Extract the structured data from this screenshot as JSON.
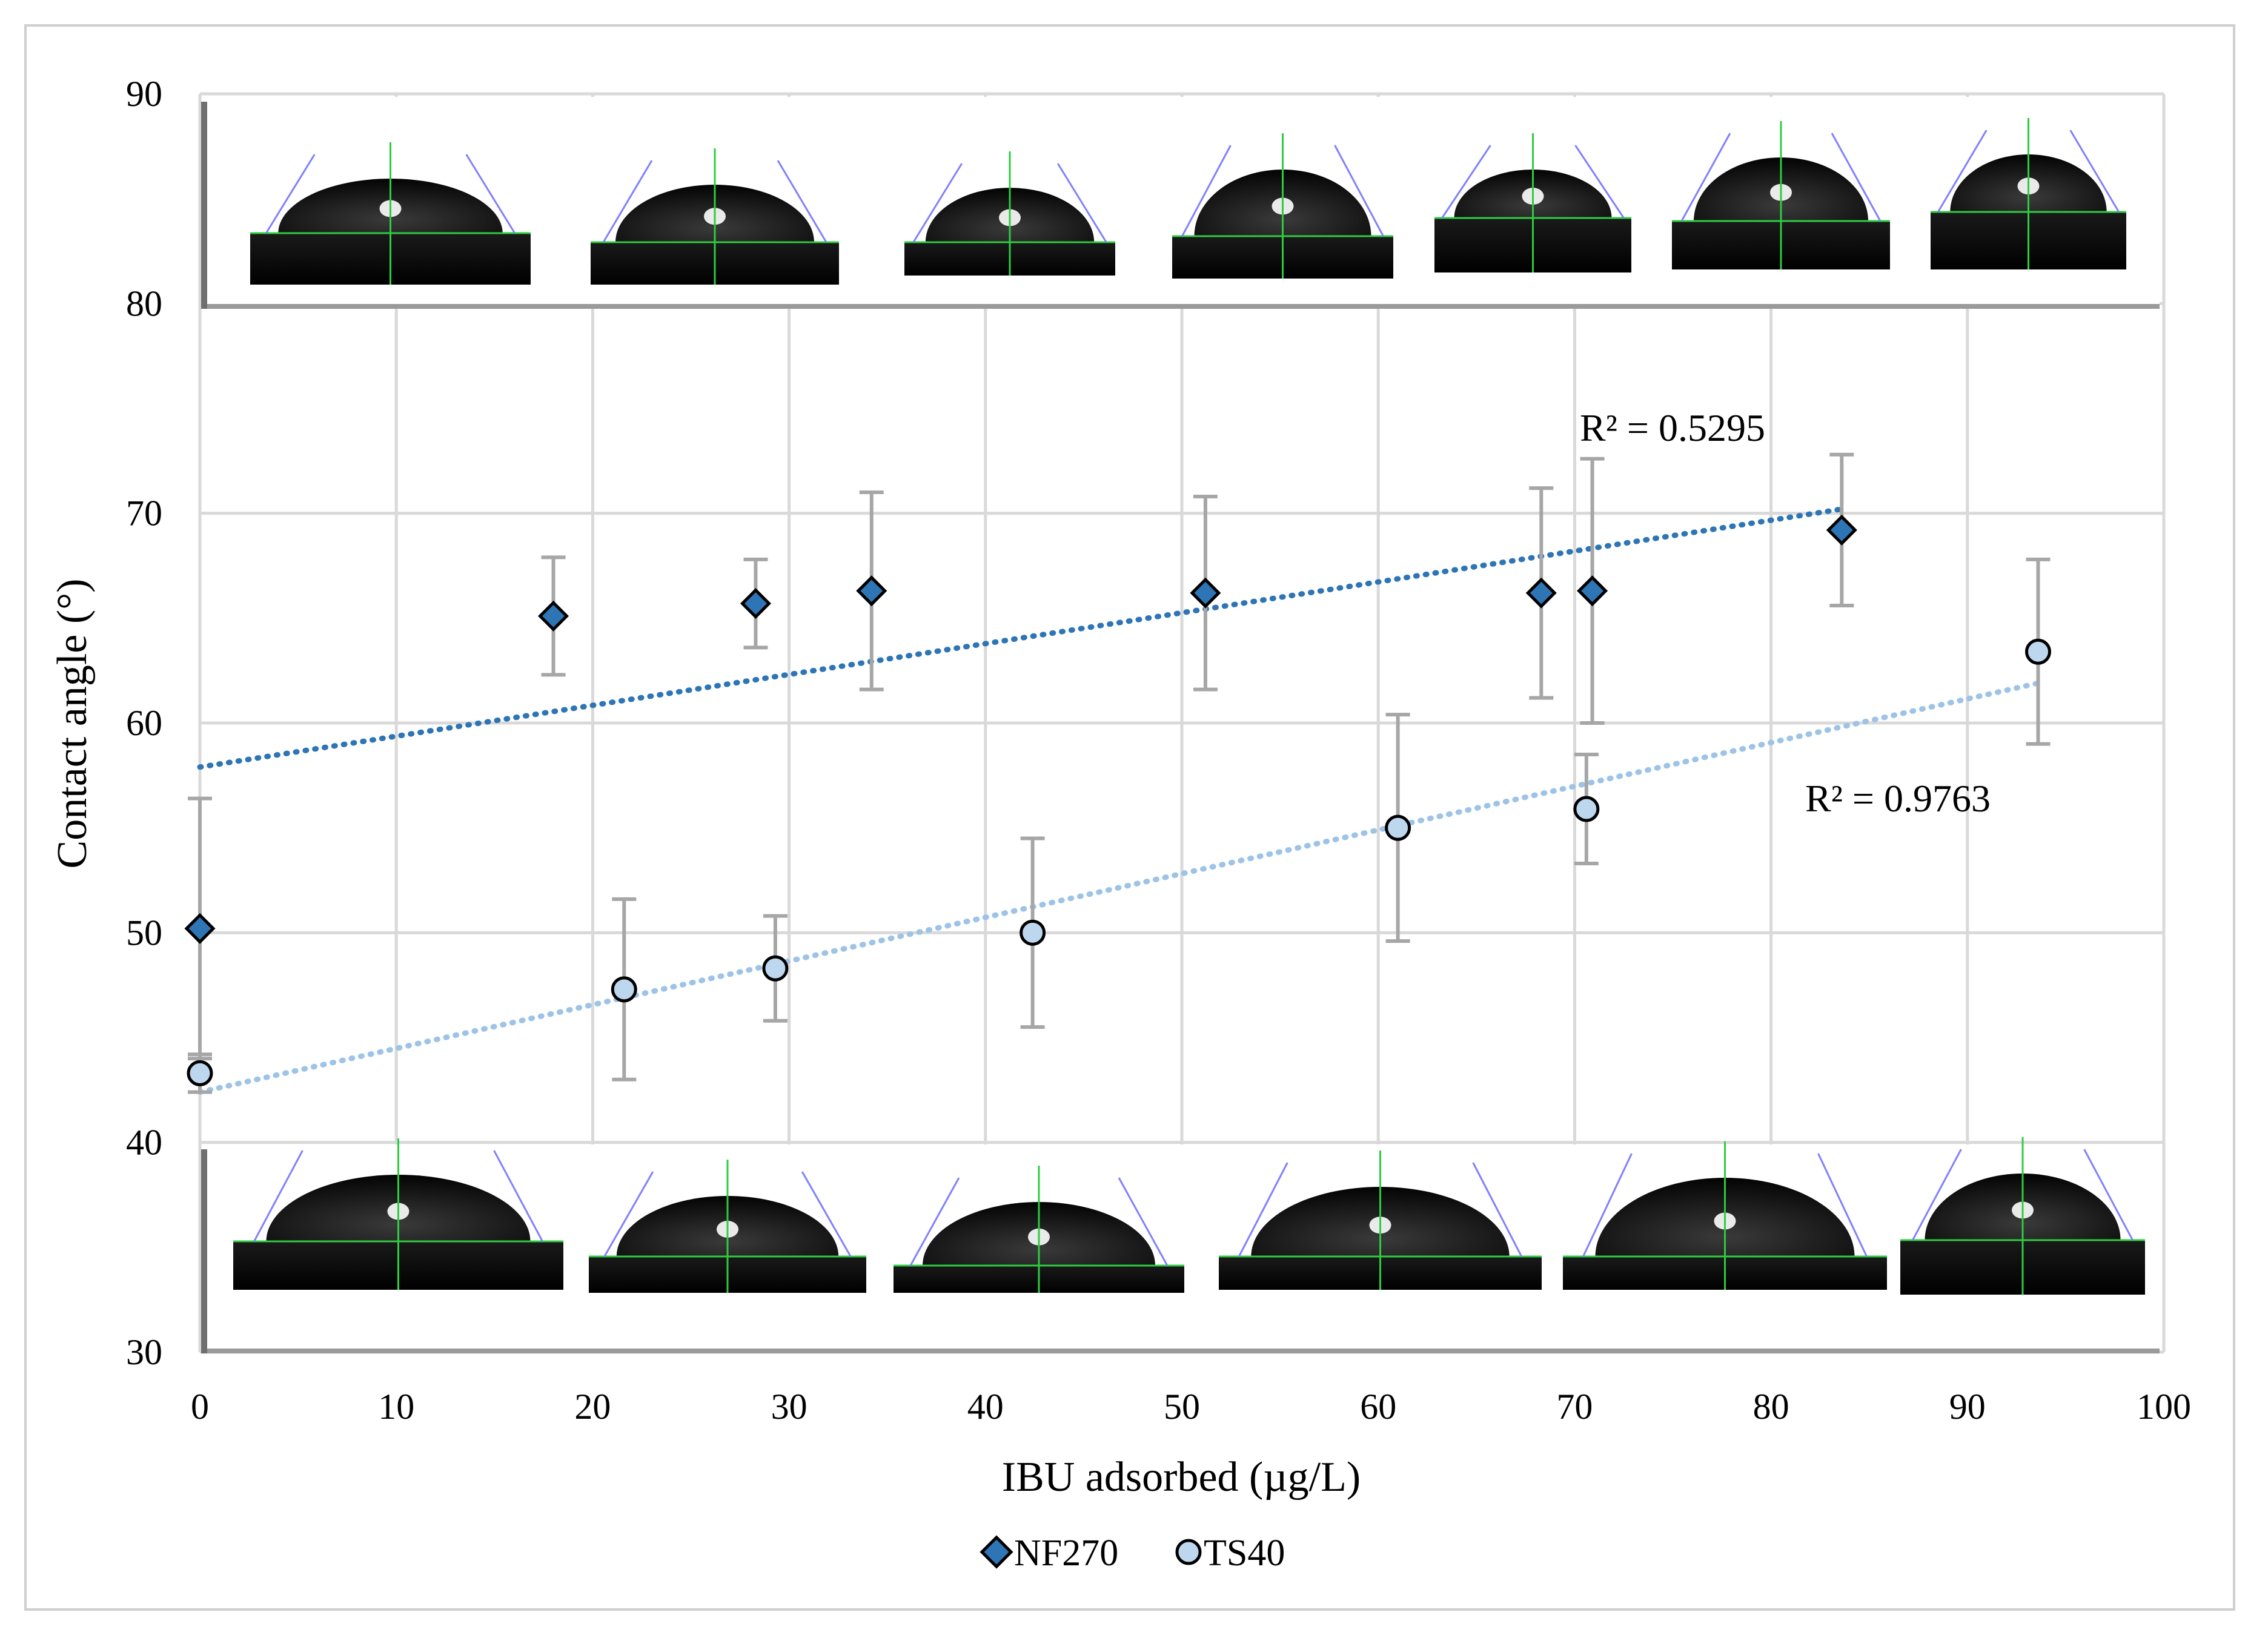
{
  "chart_data": {
    "type": "scatter",
    "xlabel": "IBU adsorbed (µg/L)",
    "ylabel": "Contact angle (°)",
    "xlim": [
      0,
      100
    ],
    "ylim": [
      30,
      90
    ],
    "x_ticks": [
      0,
      10,
      20,
      30,
      40,
      50,
      60,
      70,
      80,
      90,
      100
    ],
    "y_ticks": [
      30,
      40,
      50,
      60,
      70,
      80,
      90
    ],
    "grid": true,
    "legend_position": "bottom",
    "series": [
      {
        "name": "NF270",
        "marker": "diamond",
        "color": "#2e75b6",
        "points": [
          {
            "x": 0,
            "y": 50.2,
            "err": 6.2
          },
          {
            "x": 18,
            "y": 65.1,
            "err": 2.8
          },
          {
            "x": 28.3,
            "y": 65.7,
            "err": 2.1
          },
          {
            "x": 34.2,
            "y": 66.3,
            "err": 4.7
          },
          {
            "x": 51.2,
            "y": 66.2,
            "err": 4.6
          },
          {
            "x": 68.3,
            "y": 66.2,
            "err": 5.0
          },
          {
            "x": 70.9,
            "y": 66.3,
            "err": 6.3
          },
          {
            "x": 83.6,
            "y": 69.2,
            "err": 3.6
          }
        ],
        "trendline": {
          "type": "linear",
          "start": [
            0,
            57.9
          ],
          "end": [
            83.6,
            70.2
          ],
          "r2_label": "R² = 0.5295",
          "color": "#2e75b6"
        }
      },
      {
        "name": "TS40",
        "marker": "circle",
        "color": "#bdd7ee",
        "points": [
          {
            "x": 0,
            "y": 43.3,
            "err": 0.9
          },
          {
            "x": 21.6,
            "y": 47.3,
            "err": 4.3
          },
          {
            "x": 29.3,
            "y": 48.3,
            "err": 2.5
          },
          {
            "x": 42.4,
            "y": 50.0,
            "err": 4.5
          },
          {
            "x": 61.0,
            "y": 55.0,
            "err": 5.4
          },
          {
            "x": 70.6,
            "y": 55.9,
            "err": 2.6
          },
          {
            "x": 93.6,
            "y": 63.4,
            "err": 4.4
          }
        ],
        "trendline": {
          "type": "linear",
          "start": [
            0,
            42.4
          ],
          "end": [
            93.6,
            61.9
          ],
          "r2_label": "R² = 0.9763",
          "color": "#9dc3e6"
        }
      }
    ]
  },
  "colors": {
    "grid": "#d9d9d9",
    "error_bar": "#a6a6a6",
    "marker_outline": "#000000"
  }
}
